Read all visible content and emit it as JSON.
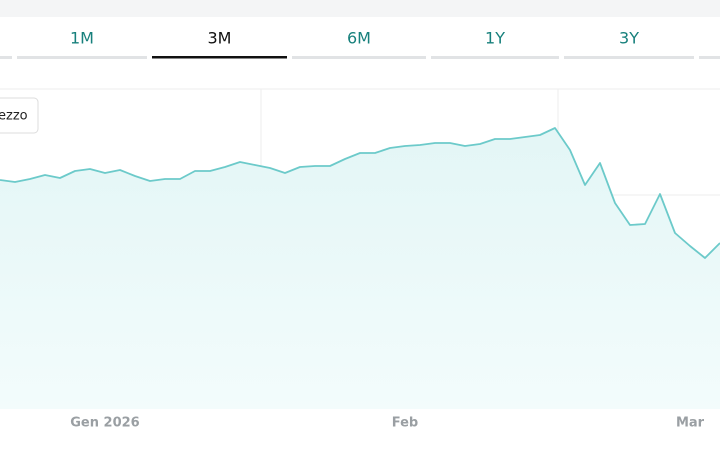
{
  "tabs": [
    "1M",
    "3M",
    "6M",
    "1Y",
    "3Y"
  ],
  "active_tab": 1,
  "chart_data": {
    "type": "area",
    "legend": "ezzo",
    "color": "#6ccaca",
    "fill": "#e8f8f8",
    "grid": true,
    "ylim": [
      0,
      320
    ],
    "categories": [
      null,
      null,
      null,
      null,
      null,
      null,
      null,
      "Gen 2026",
      null,
      null,
      null,
      null,
      null,
      null,
      null,
      null,
      null,
      null,
      null,
      null,
      null,
      null,
      null,
      null,
      null,
      null,
      null,
      "Feb",
      null,
      null,
      null,
      null,
      null,
      null,
      null,
      null,
      null,
      null,
      null,
      null,
      null,
      null,
      null,
      null,
      null,
      null,
      "Mar",
      null,
      null
    ],
    "values": [
      229,
      227,
      230,
      234,
      231,
      238,
      240,
      236,
      239,
      233,
      228,
      230,
      230,
      238,
      238,
      242,
      247,
      244,
      241,
      236,
      242,
      243,
      243,
      250,
      256,
      256,
      261,
      263,
      264,
      266,
      266,
      263,
      265,
      270,
      270,
      272,
      274,
      281,
      259,
      224,
      246,
      206,
      184,
      185,
      215,
      176,
      163,
      151,
      166
    ]
  }
}
